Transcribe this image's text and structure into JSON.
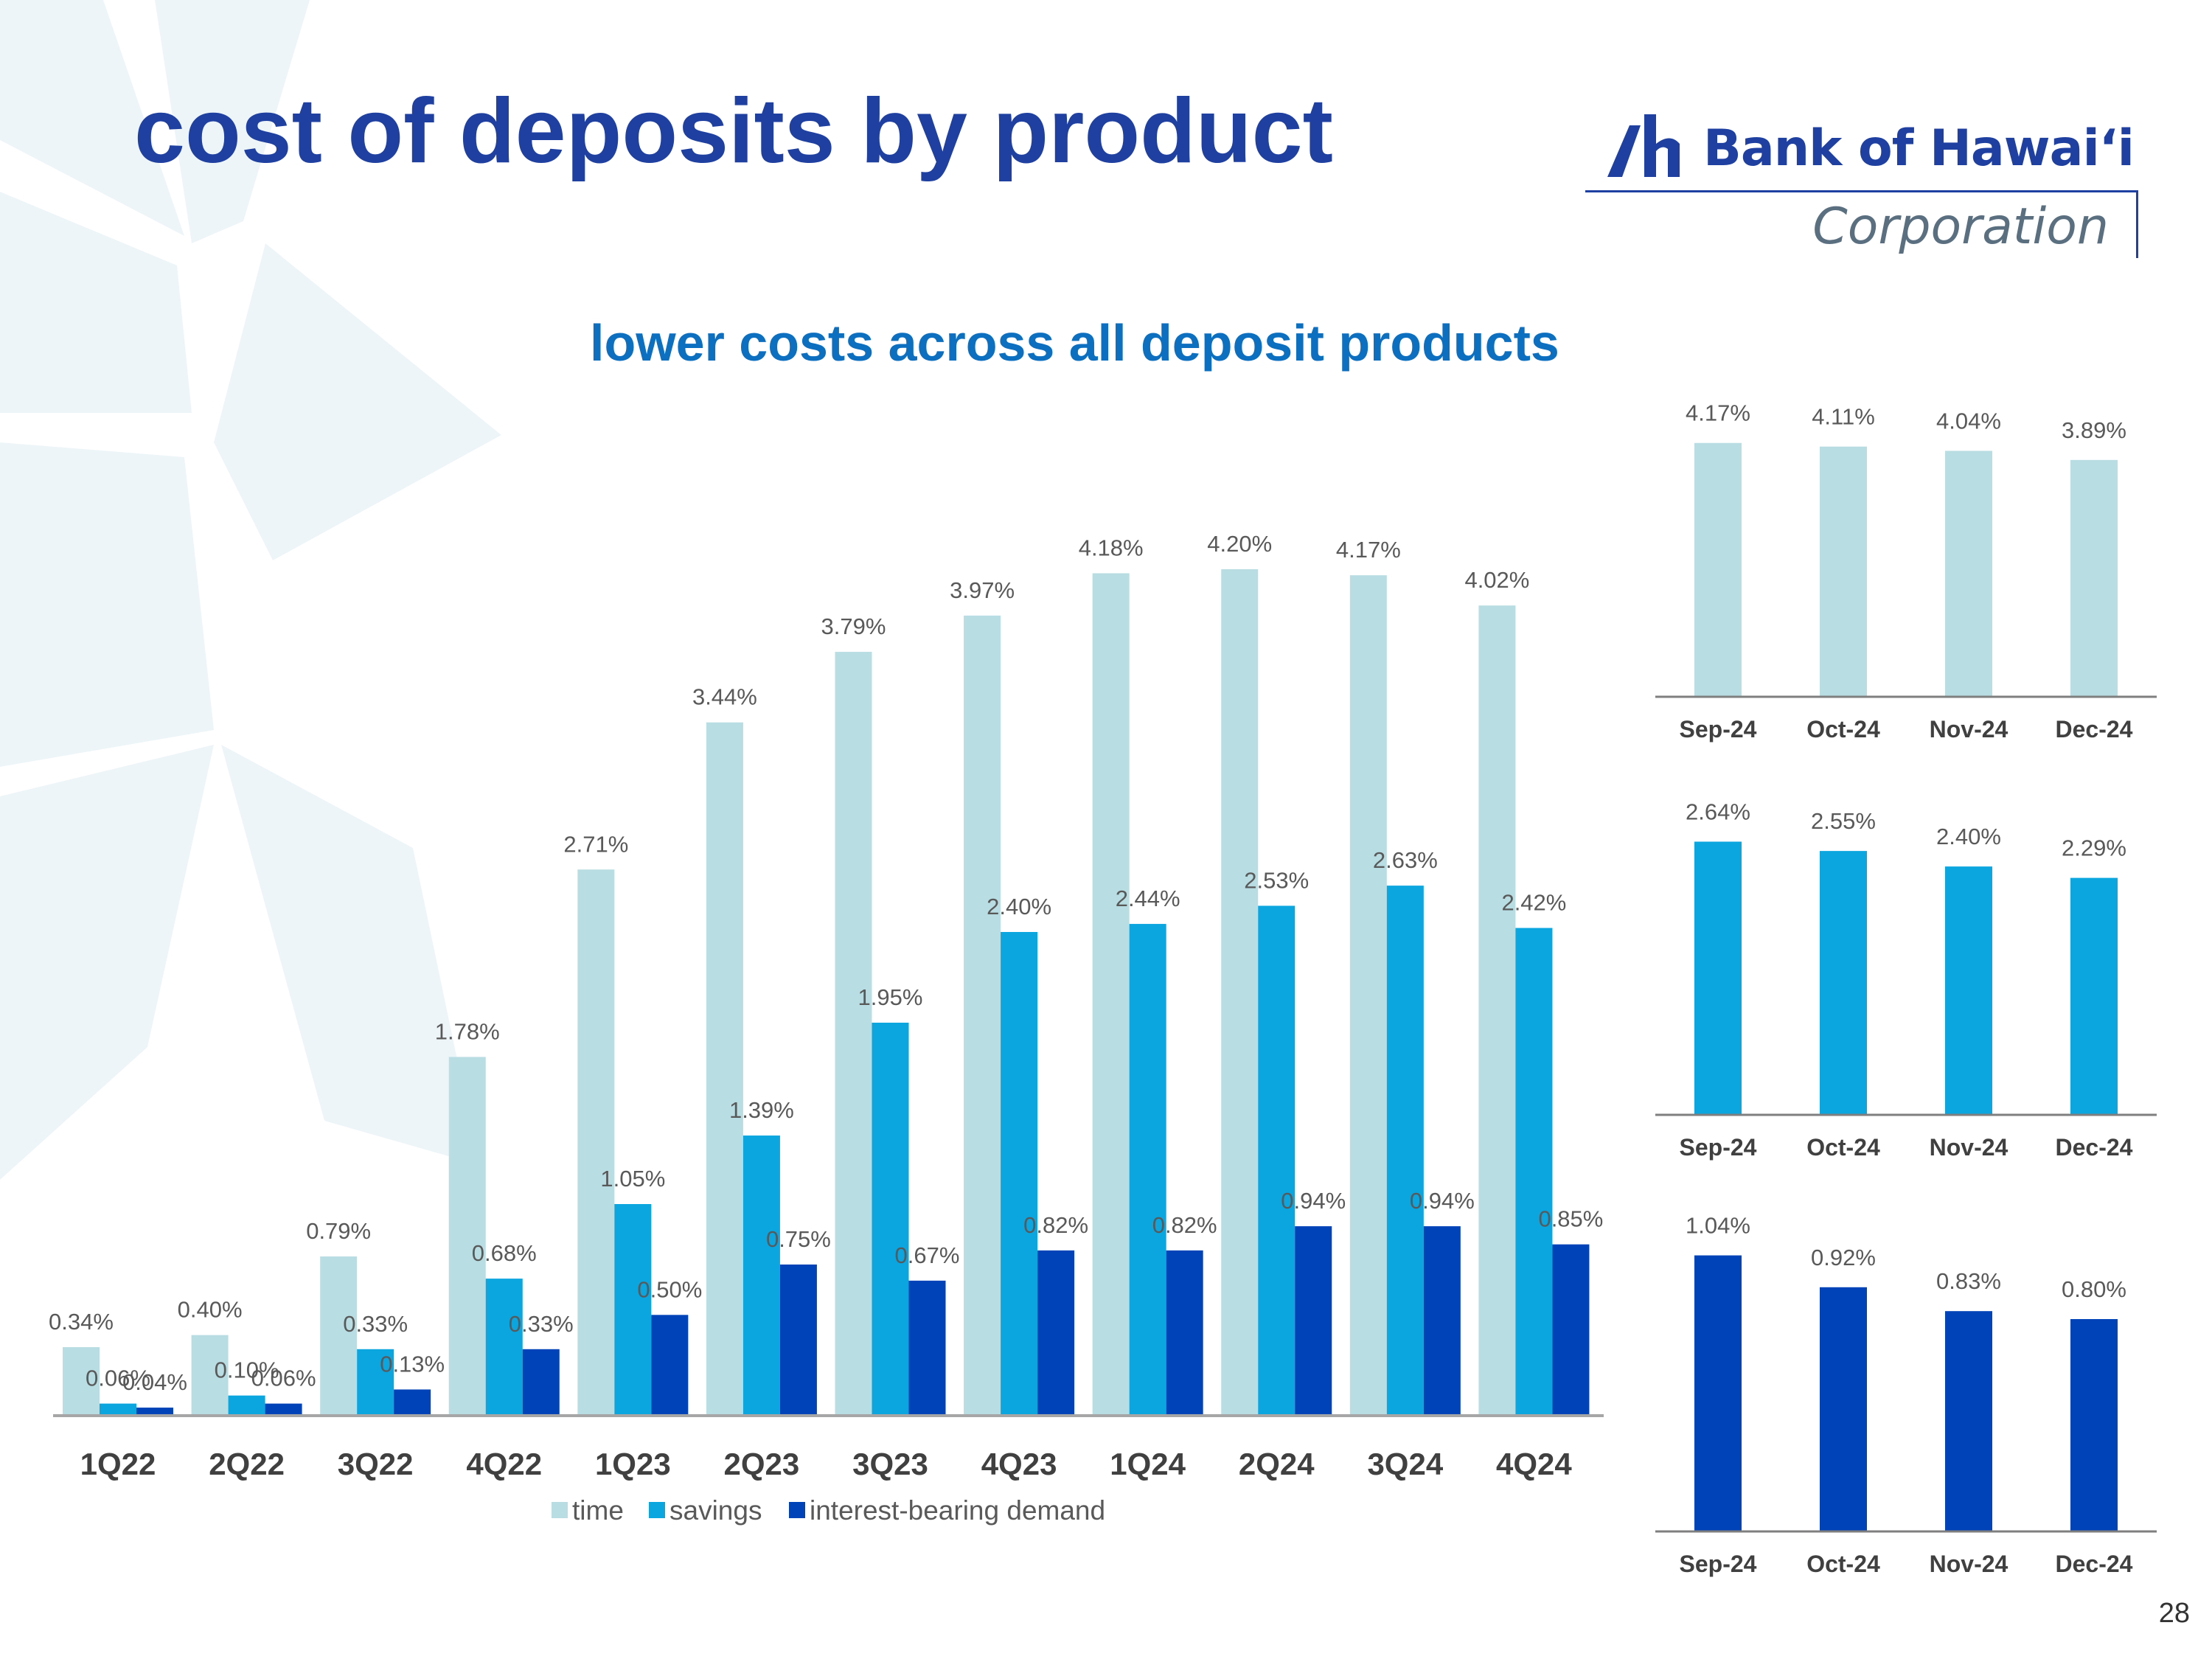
{
  "slide": {
    "title": "cost of deposits by product",
    "subtitle": "lower costs across all deposit products",
    "page_number": "28",
    "logo": {
      "name": "Bank of Hawaiʻi",
      "suffix": "Corporation",
      "color": "#1f40a0"
    }
  },
  "colors": {
    "time": "#b8dde3",
    "savings": "#0ba5df",
    "interest_bearing_demand": "#0042b8",
    "label": "#595959",
    "axis_text": "#404040"
  },
  "chart_data": [
    {
      "type": "bar",
      "categories": [
        "1Q22",
        "2Q22",
        "3Q22",
        "4Q22",
        "1Q23",
        "2Q23",
        "3Q23",
        "4Q23",
        "1Q24",
        "2Q24",
        "3Q24",
        "4Q24"
      ],
      "series": [
        {
          "name": "time",
          "values": [
            0.34,
            0.4,
            0.79,
            1.78,
            2.71,
            3.44,
            3.79,
            3.97,
            4.18,
            4.2,
            4.17,
            4.02
          ],
          "labels": [
            "0.34%",
            "0.40%",
            "0.79%",
            "1.78%",
            "2.71%",
            "3.44%",
            "3.79%",
            "3.97%",
            "4.18%",
            "4.20%",
            "4.17%",
            "4.02%"
          ]
        },
        {
          "name": "savings",
          "values": [
            0.06,
            0.1,
            0.33,
            0.68,
            1.05,
            1.39,
            1.95,
            2.4,
            2.44,
            2.53,
            2.63,
            2.42
          ],
          "labels": [
            "0.06%",
            "0.10%",
            "0.33%",
            "0.68%",
            "1.05%",
            "1.39%",
            "1.95%",
            "2.40%",
            "2.44%",
            "2.53%",
            "2.63%",
            "2.42%"
          ]
        },
        {
          "name": "interest-bearing demand",
          "values": [
            0.04,
            0.06,
            0.13,
            0.33,
            0.5,
            0.75,
            0.67,
            0.82,
            0.82,
            0.94,
            0.94,
            0.85
          ],
          "labels": [
            "0.04%",
            "0.06%",
            "0.13%",
            "0.33%",
            "0.50%",
            "0.75%",
            "0.67%",
            "0.82%",
            "0.82%",
            "0.94%",
            "0.94%",
            "0.85%"
          ]
        }
      ],
      "ylim": [
        0,
        4.5
      ],
      "legend": "bottom",
      "grid": false
    },
    {
      "type": "bar",
      "categories": [
        "Sep-24",
        "Oct-24",
        "Nov-24",
        "Dec-24"
      ],
      "series": [
        {
          "name": "time",
          "values": [
            4.17,
            4.11,
            4.04,
            3.89
          ],
          "labels": [
            "4.17%",
            "4.11%",
            "4.04%",
            "3.89%"
          ]
        }
      ],
      "ylim": [
        0,
        4.3
      ],
      "grid": false
    },
    {
      "type": "bar",
      "categories": [
        "Sep-24",
        "Oct-24",
        "Nov-24",
        "Dec-24"
      ],
      "series": [
        {
          "name": "savings",
          "values": [
            2.64,
            2.55,
            2.4,
            2.29
          ],
          "labels": [
            "2.64%",
            "2.55%",
            "2.40%",
            "2.29%"
          ]
        }
      ],
      "ylim": [
        0,
        2.9
      ],
      "grid": false
    },
    {
      "type": "bar",
      "categories": [
        "Sep-24",
        "Oct-24",
        "Nov-24",
        "Dec-24"
      ],
      "series": [
        {
          "name": "interest-bearing demand",
          "values": [
            1.04,
            0.92,
            0.83,
            0.8
          ],
          "labels": [
            "1.04%",
            "0.92%",
            "0.83%",
            "0.80%"
          ]
        }
      ],
      "ylim": [
        0,
        1.2
      ],
      "grid": false
    }
  ]
}
